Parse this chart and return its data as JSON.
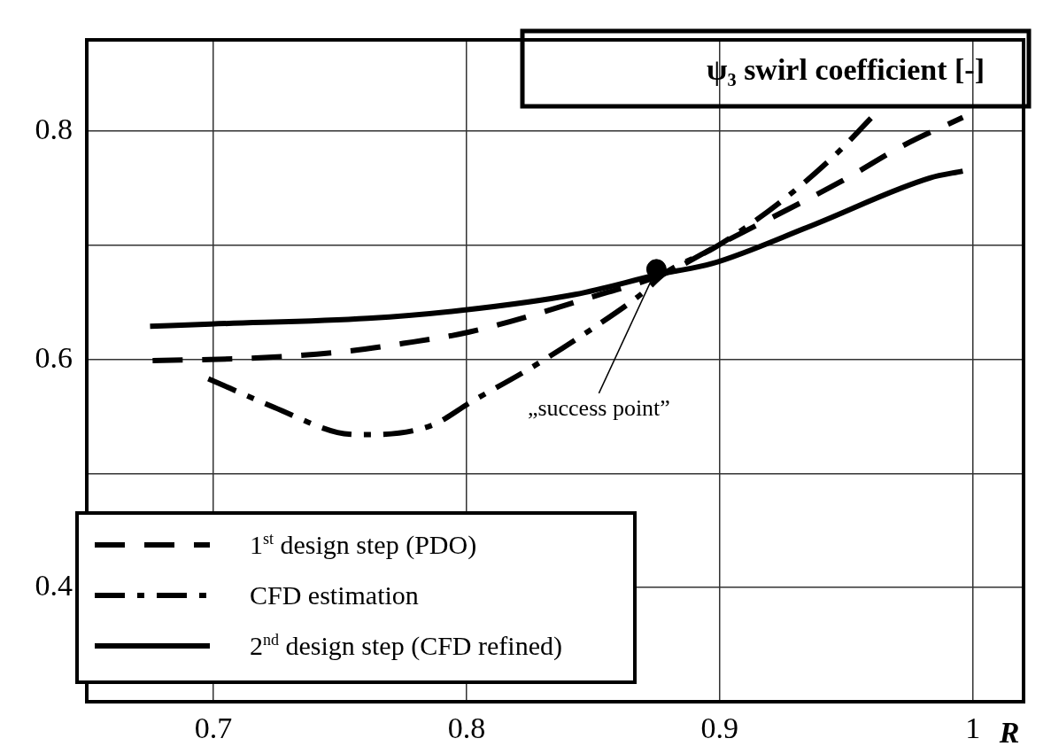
{
  "chart_data": {
    "type": "line",
    "title": "ψ₃ swirl coefficient [-]",
    "xlabel": "R",
    "xlim": [
      0.65,
      1.02
    ],
    "xticks": [
      0.7,
      0.8,
      0.9,
      1
    ],
    "ylim": [
      0.3,
      0.88
    ],
    "yticks": [
      0.4,
      {
        "value": 0.5,
        "label": null
      },
      0.6,
      {
        "value": 0.7,
        "label": null
      },
      0.8
    ],
    "grid": true,
    "legend": "bottom left",
    "marker": "none",
    "series": [
      {
        "name": "1$^{st}$ design step (PDO)",
        "color": "#000000",
        "line_style": "dashed",
        "x": [
          0.676,
          0.714,
          0.748,
          0.775,
          0.801,
          0.853,
          0.878,
          0.901,
          0.948,
          0.973,
          0.996
        ],
        "values": [
          0.599,
          0.601,
          0.606,
          0.614,
          0.624,
          0.657,
          0.675,
          0.702,
          0.756,
          0.788,
          0.812
        ]
      },
      {
        "name": "CFD estimation",
        "color": "#000000",
        "line_style": "dashdot",
        "x": [
          0.698,
          0.724,
          0.749,
          0.759,
          0.786,
          0.802,
          0.825,
          0.849,
          0.87,
          0.878,
          0.898,
          0.924,
          0.946,
          0.96
        ],
        "values": [
          0.583,
          0.558,
          0.536,
          0.534,
          0.542,
          0.563,
          0.592,
          0.626,
          0.659,
          0.675,
          0.698,
          0.738,
          0.78,
          0.812
        ]
      },
      {
        "name": "2$^{nd}$ design step (CFD refined)",
        "color": "#000000",
        "line_style": "solid",
        "x": [
          0.675,
          0.699,
          0.761,
          0.798,
          0.843,
          0.877,
          0.897,
          0.936,
          0.983,
          0.996
        ],
        "values": [
          0.629,
          0.631,
          0.636,
          0.643,
          0.657,
          0.675,
          0.684,
          0.717,
          0.759,
          0.765
        ]
      },
      {
        "type": "scatter",
        "marker": "circle",
        "color": "#000000",
        "x": [
          0.875
        ],
        "values": [
          0.679
        ]
      }
    ],
    "annotations": [
      {
        "text": "„success point”",
        "x": 0.875,
        "y": 0.679
      }
    ]
  }
}
